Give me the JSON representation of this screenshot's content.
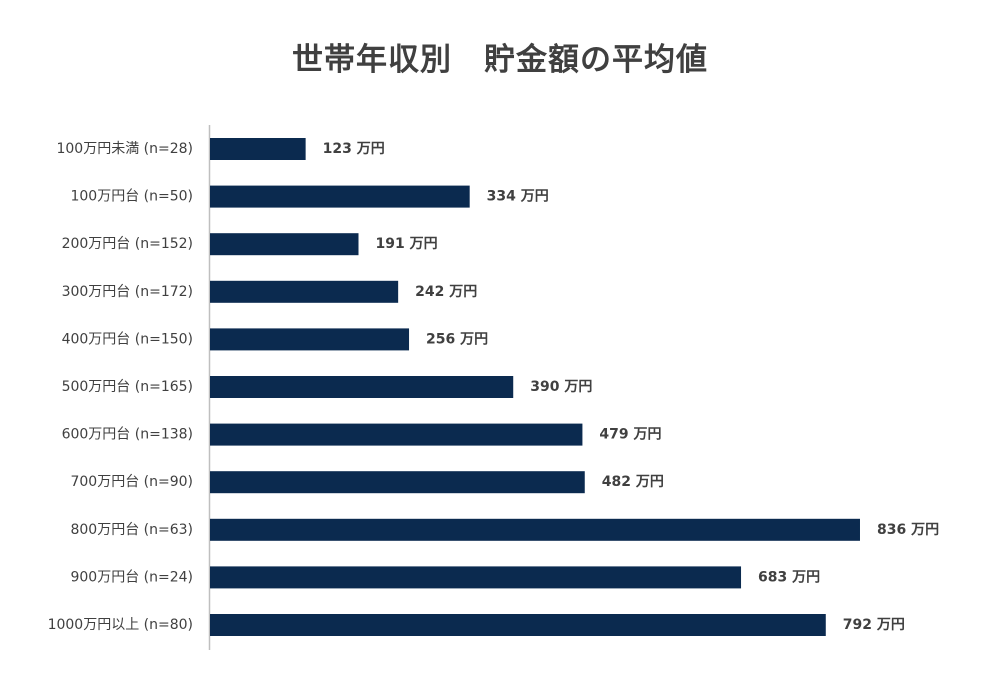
{
  "chart_data": {
    "type": "bar",
    "orientation": "horizontal",
    "title": "世帯年収別　貯金額の平均値",
    "xlabel": "",
    "ylabel": "",
    "unit": "万円",
    "xlim": [
      0,
      850
    ],
    "grid": false,
    "legend": "none",
    "categories": [
      "100万円未満 (n=28)",
      "100万円台 (n=50)",
      "200万円台 (n=152)",
      "300万円台 (n=172)",
      "400万円台 (n=150)",
      "500万円台 (n=165)",
      "600万円台 (n=138)",
      "700万円台 (n=90)",
      "800万円台 (n=63)",
      "900万円台 (n=24)",
      "1000万円以上 (n=80)"
    ],
    "values": [
      123,
      334,
      191,
      242,
      256,
      390,
      479,
      482,
      836,
      683,
      792
    ],
    "data_labels": [
      "123 万円",
      "334 万円",
      "191 万円",
      "242 万円",
      "256 万円",
      "390 万円",
      "479 万円",
      "482 万円",
      "836 万円",
      "683 万円",
      "792 万円"
    ],
    "colors": {
      "bar": "#0B2A4F",
      "text": "#404040",
      "axis": "#BFBFBF"
    }
  }
}
